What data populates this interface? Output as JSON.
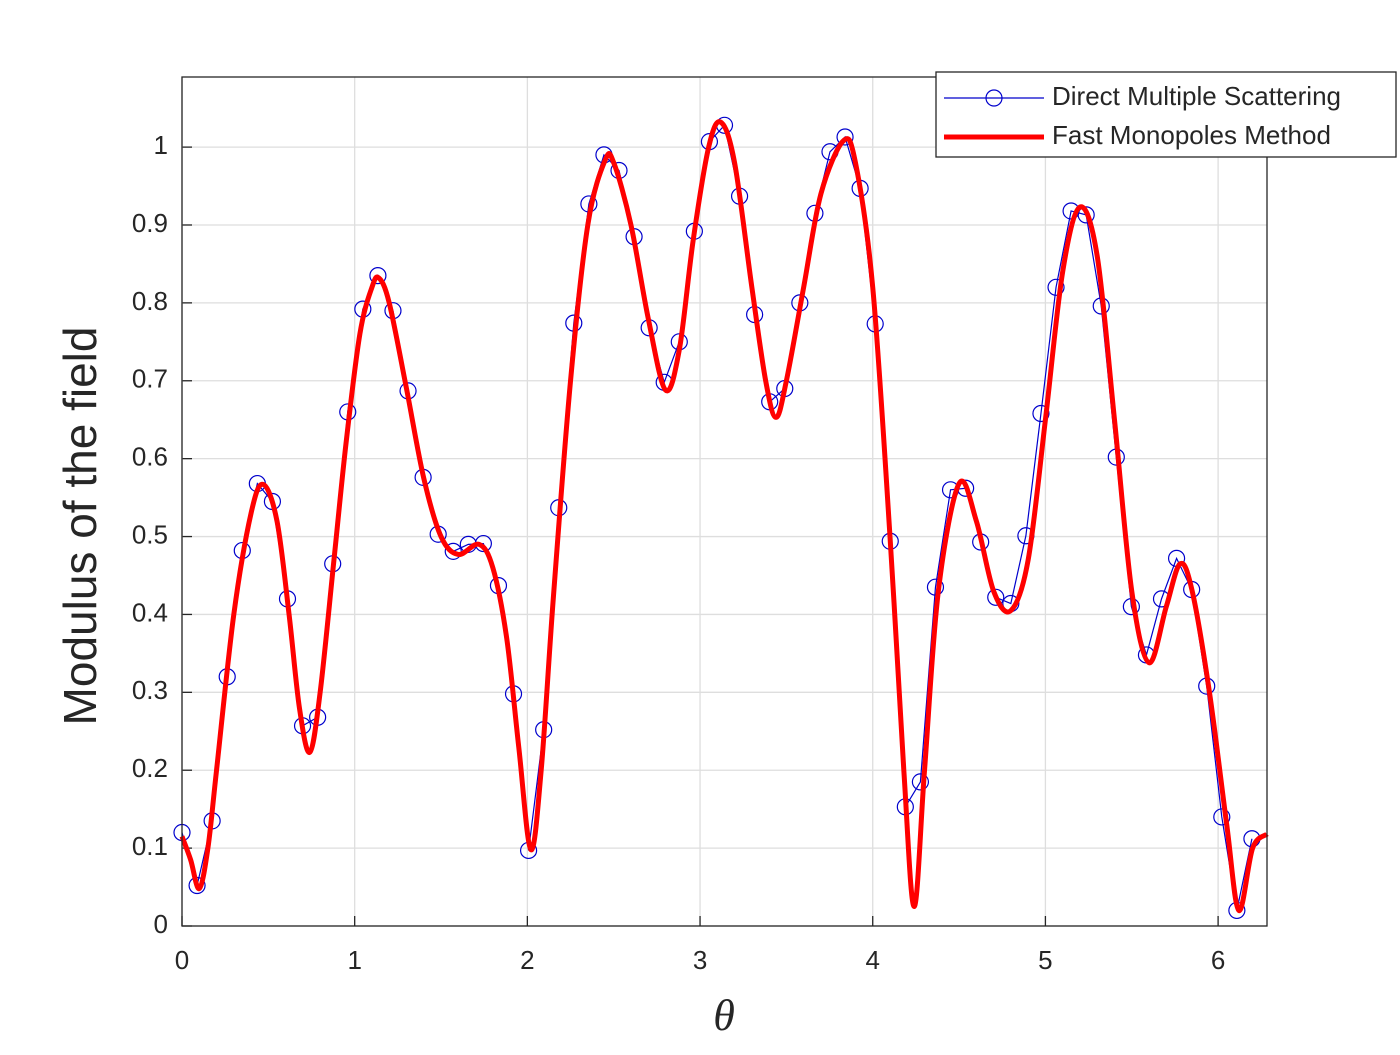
{
  "chart_data": {
    "type": "line",
    "x_label": "θ",
    "y_label": "Modulus of the field",
    "xlim": [
      0,
      6.2832
    ],
    "ylim": [
      0,
      1.09
    ],
    "xticks": [
      0,
      1,
      2,
      3,
      4,
      5,
      6
    ],
    "yticks": [
      0,
      0.1,
      0.2,
      0.3,
      0.4,
      0.5,
      0.6,
      0.7,
      0.8,
      0.9,
      1
    ],
    "grid": true,
    "legend": "northeast",
    "series": [
      {
        "name": "Direct Multiple Scattering",
        "color": "#0000cc",
        "marker": "circle",
        "x": [
          0,
          0.0873,
          0.1745,
          0.2618,
          0.3491,
          0.4363,
          0.5236,
          0.6109,
          0.6981,
          0.7854,
          0.8727,
          0.9599,
          1.0472,
          1.1345,
          1.2217,
          1.309,
          1.3963,
          1.4835,
          1.5708,
          1.6581,
          1.7453,
          1.8326,
          1.9199,
          2.0071,
          2.0944,
          2.1817,
          2.2689,
          2.3562,
          2.4435,
          2.5307,
          2.618,
          2.7053,
          2.7925,
          2.8798,
          2.9671,
          3.0543,
          3.1416,
          3.2289,
          3.3161,
          3.4034,
          3.4907,
          3.5779,
          3.6652,
          3.7525,
          3.8397,
          3.927,
          4.0143,
          4.1015,
          4.1888,
          4.2761,
          4.3633,
          4.4506,
          4.5379,
          4.6251,
          4.7124,
          4.7997,
          4.8869,
          4.9742,
          5.0615,
          5.1487,
          5.236,
          5.3233,
          5.4105,
          5.4978,
          5.5851,
          5.6723,
          5.7596,
          5.8469,
          5.9341,
          6.0214,
          6.1087,
          6.1959
        ],
        "values": [
          0.12,
          0.052,
          0.135,
          0.32,
          0.482,
          0.568,
          0.545,
          0.42,
          0.257,
          0.268,
          0.465,
          0.66,
          0.792,
          0.835,
          0.79,
          0.687,
          0.576,
          0.503,
          0.481,
          0.49,
          0.491,
          0.437,
          0.298,
          0.097,
          0.252,
          0.537,
          0.774,
          0.927,
          0.99,
          0.97,
          0.885,
          0.768,
          0.698,
          0.75,
          0.892,
          1.007,
          1.028,
          0.937,
          0.785,
          0.673,
          0.69,
          0.8,
          0.915,
          0.994,
          1.013,
          0.947,
          0.773,
          0.494,
          0.153,
          0.185,
          0.435,
          0.56,
          0.562,
          0.493,
          0.422,
          0.414,
          0.501,
          0.658,
          0.82,
          0.918,
          0.913,
          0.796,
          0.602,
          0.41,
          0.348,
          0.42,
          0.472,
          0.432,
          0.308,
          0.14,
          0.02,
          0.112
        ]
      },
      {
        "name": "Fast Monopoles Method",
        "color": "#ff0000",
        "x": [
          0,
          0.05,
          0.1,
          0.15,
          0.2,
          0.3,
          0.4,
          0.47,
          0.55,
          0.62,
          0.68,
          0.74,
          0.8,
          0.88,
          0.95,
          1.03,
          1.1,
          1.14,
          1.2,
          1.3,
          1.4,
          1.5,
          1.6,
          1.72,
          1.8,
          1.88,
          1.95,
          2.02,
          2.08,
          2.15,
          2.25,
          2.35,
          2.45,
          2.5,
          2.6,
          2.7,
          2.8,
          2.88,
          2.96,
          3.05,
          3.12,
          3.2,
          3.3,
          3.38,
          3.44,
          3.5,
          3.6,
          3.7,
          3.83,
          3.9,
          4.0,
          4.1,
          4.18,
          4.24,
          4.3,
          4.38,
          4.5,
          4.6,
          4.7,
          4.8,
          4.9,
          5.0,
          5.1,
          5.2,
          5.3,
          5.4,
          5.5,
          5.6,
          5.7,
          5.78,
          5.85,
          5.95,
          6.05,
          6.12,
          6.2,
          6.2832
        ],
        "values": [
          0.115,
          0.085,
          0.048,
          0.1,
          0.2,
          0.4,
          0.53,
          0.567,
          0.52,
          0.4,
          0.28,
          0.223,
          0.3,
          0.47,
          0.62,
          0.76,
          0.82,
          0.832,
          0.8,
          0.69,
          0.575,
          0.5,
          0.477,
          0.49,
          0.46,
          0.37,
          0.23,
          0.098,
          0.2,
          0.42,
          0.7,
          0.9,
          0.983,
          0.98,
          0.9,
          0.78,
          0.688,
          0.74,
          0.88,
          1.0,
          1.032,
          0.98,
          0.82,
          0.7,
          0.653,
          0.7,
          0.82,
          0.94,
          1.008,
          0.98,
          0.82,
          0.5,
          0.2,
          0.025,
          0.2,
          0.43,
          0.568,
          0.52,
          0.43,
          0.405,
          0.47,
          0.65,
          0.84,
          0.923,
          0.86,
          0.65,
          0.43,
          0.338,
          0.41,
          0.465,
          0.43,
          0.3,
          0.13,
          0.02,
          0.1,
          0.118
        ]
      }
    ]
  }
}
